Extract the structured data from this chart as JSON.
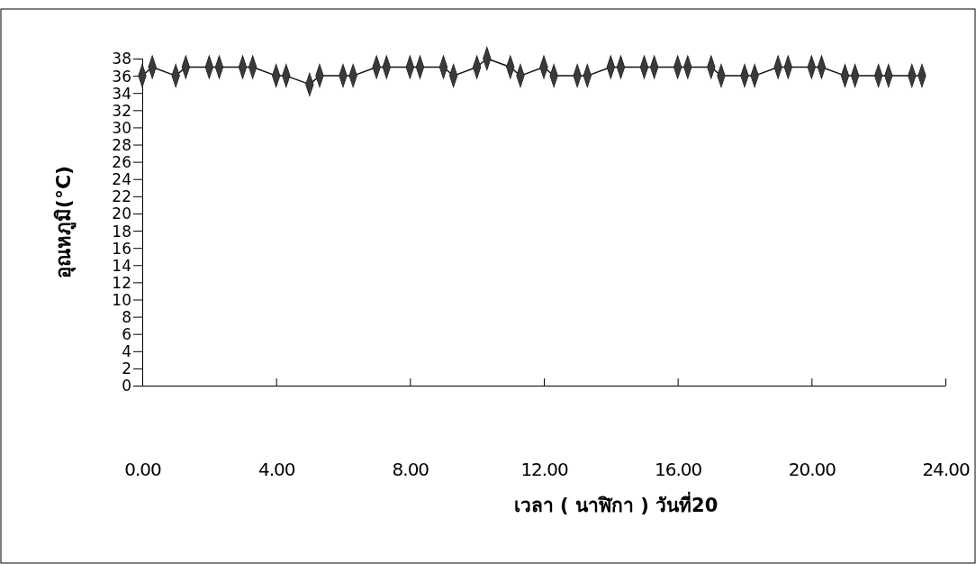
{
  "chart_data": {
    "type": "line",
    "xlabel": "เวลา ( นาฬิกา ) วันที่20",
    "ylabel": "อุณหภูมิ(°C)",
    "x": [
      0,
      0.3,
      1,
      1.3,
      2,
      2.3,
      3,
      3.3,
      4,
      4.3,
      5,
      5.3,
      6,
      6.3,
      7,
      7.3,
      8,
      8.3,
      9,
      9.3,
      10,
      10.3,
      11,
      11.3,
      12,
      12.3,
      13,
      13.3,
      14,
      14.3,
      15,
      15.3,
      16,
      16.3,
      17,
      17.3,
      18,
      18.3,
      19,
      19.3,
      20,
      20.3,
      21,
      21.3,
      22,
      22.3,
      23,
      23.3
    ],
    "series": [
      {
        "color": "#3a3a3a",
        "values": [
          36,
          37,
          36,
          37,
          37,
          37,
          37,
          37,
          36,
          36,
          35,
          36,
          36,
          36,
          37,
          37,
          37,
          37,
          37,
          36,
          37,
          38,
          37,
          36,
          37,
          36,
          36,
          36,
          37,
          37,
          37,
          37,
          37,
          37,
          37,
          36,
          36,
          36,
          37,
          37,
          37,
          37,
          36,
          36,
          36,
          36,
          36,
          36
        ]
      }
    ],
    "xlim": [
      0,
      24
    ],
    "xticks": [
      {
        "value": 0,
        "label": "0.00"
      },
      {
        "value": 4,
        "label": "4.00"
      },
      {
        "value": 8,
        "label": "8.00"
      },
      {
        "value": 12,
        "label": "12.00"
      },
      {
        "value": 16,
        "label": "16.00"
      },
      {
        "value": 20,
        "label": "20.00"
      },
      {
        "value": 24,
        "label": "24.00"
      }
    ],
    "ylim": [
      0,
      38
    ],
    "yticks": [
      0,
      2,
      4,
      6,
      8,
      10,
      12,
      14,
      16,
      18,
      20,
      22,
      24,
      26,
      28,
      30,
      32,
      34,
      36,
      38
    ],
    "marker": "diamond",
    "grid": false
  }
}
